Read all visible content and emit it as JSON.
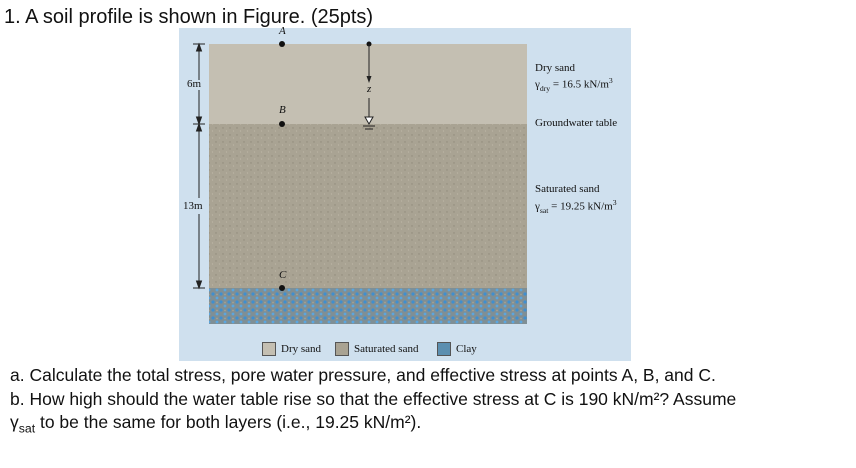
{
  "question": {
    "title": "1. A soil profile is shown in Figure. (25pts)",
    "part_a": "a. Calculate the total stress, pore water pressure, and effective stress at points A, B, and C.",
    "part_b_line1": "b. How high should the water table rise so that the effective stress at C is 190 kN/m²? Assume",
    "part_b_gamma": "γ",
    "part_b_sub": "sat",
    "part_b_rest": " to be the same for both layers (i.e., 19.25 kN/m²)."
  },
  "figure": {
    "points": {
      "a": "A",
      "b": "B",
      "c": "C",
      "z": "z"
    },
    "dims": {
      "top": "6m",
      "bottom": "13m"
    },
    "dry_sand": {
      "name": "Dry sand",
      "gamma": "γ",
      "sub": "dry",
      "value": " = 16.5 kN/m",
      "sup": "3"
    },
    "groundwater": "Groundwater table",
    "saturated_sand": {
      "name": "Saturated sand",
      "gamma": "γ",
      "sub": "sat",
      "value": " = 19.25 kN/m",
      "sup": "3"
    },
    "legend": [
      {
        "label": "Dry sand",
        "color": "#c4bfb2"
      },
      {
        "label": "Saturated sand",
        "color": "#a9a393"
      },
      {
        "label": "Clay",
        "color": "#5c8fb0"
      }
    ]
  }
}
